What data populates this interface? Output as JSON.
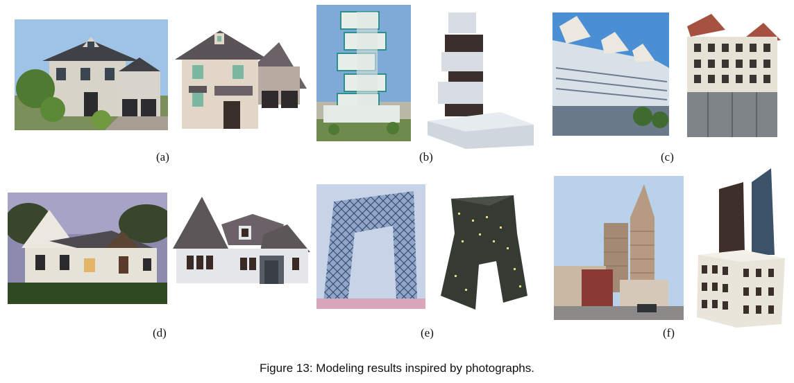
{
  "figure": {
    "caption": "Figure 13: Modeling results inspired by photographs."
  },
  "panels": [
    {
      "label": "(a)"
    },
    {
      "label": "(b)"
    },
    {
      "label": "(c)"
    },
    {
      "label": "(d)"
    },
    {
      "label": "(e)"
    },
    {
      "label": "(f)"
    }
  ]
}
